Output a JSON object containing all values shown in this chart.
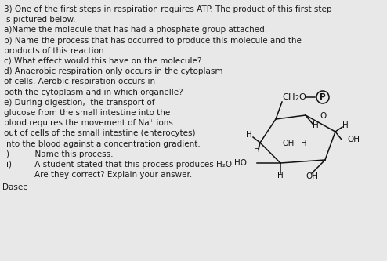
{
  "bg_color": "#e8e8e8",
  "text_color": "#1a1a1a",
  "title_line1": "3) One of the first steps in respiration requires ATP. The product of this first step",
  "title_line2": "is pictured below.",
  "q_a": "a)Name the molecule that has had a phosphate group attached.",
  "q_b_line1": "b) Name the process that has occurred to produce this molecule and the",
  "q_b_line2": "products of this reaction",
  "q_c": "c) What effect would this have on the molecule?",
  "q_d_line1": "d) Anaerobic respiration only occurs in the cytoplasm",
  "q_d_line2": "of cells. Aerobic respiration occurs in",
  "q_d_line3": "both the cytoplasm and in which organelle?",
  "q_e_line1": "e) During digestion,  the transport of",
  "q_e_line2": "glucose from the small intestine into the",
  "q_e_line3": "blood requires the movement of Na⁺ ions",
  "q_e_line4": "out of cells of the small intestine (enterocytes)",
  "q_e_line5": "into the blood against a concentration gradient.",
  "q_i": "i)          Name this process.",
  "q_ii_line1": "ii)         A student stated that this process produces H₂O.",
  "q_ii_line2": "            Are they correct? Explain your answer.",
  "footer": "Dasee",
  "fontsize_main": 7.5
}
